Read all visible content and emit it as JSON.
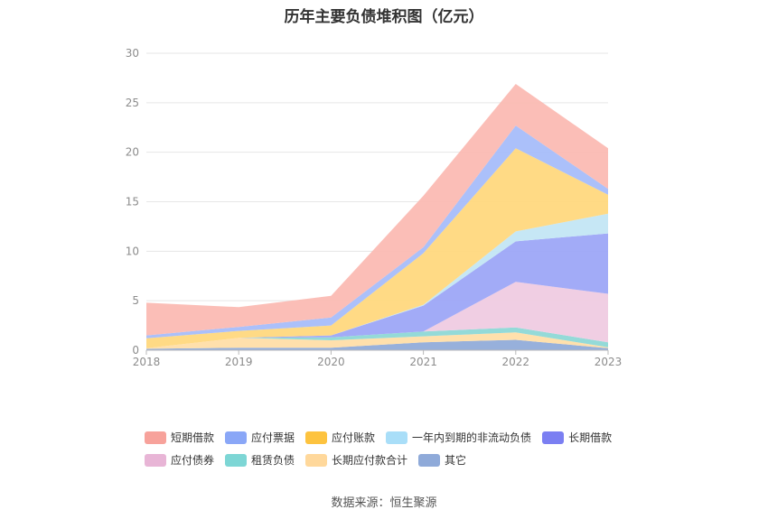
{
  "title": "历年主要负债堆积图（亿元）",
  "source": "数据来源：恒生聚源",
  "chart_data": {
    "type": "area",
    "stacked": true,
    "categories": [
      "2018",
      "2019",
      "2020",
      "2021",
      "2022",
      "2023"
    ],
    "ylim": [
      0,
      30
    ],
    "yticks": [
      0,
      5,
      10,
      15,
      20,
      25,
      30
    ],
    "grid": true,
    "legend_position": "bottom",
    "series": [
      {
        "name": "其它",
        "color": "#91acd9",
        "values": [
          0.15,
          0.25,
          0.25,
          0.8,
          1.05,
          0.2
        ]
      },
      {
        "name": "长期应付款合计",
        "color": "#ffdea8",
        "values": [
          0.05,
          1.0,
          0.75,
          0.6,
          0.75,
          0.1
        ]
      },
      {
        "name": "租赁负债",
        "color": "#8ed8d6",
        "values": [
          0,
          0,
          0.3,
          0.5,
          0.5,
          0.5
        ]
      },
      {
        "name": "应付债券",
        "color": "#efcbe2",
        "values": [
          0,
          0,
          0,
          0,
          4.6,
          4.9
        ]
      },
      {
        "name": "长期借款",
        "color": "#9da6f7",
        "values": [
          0,
          0,
          0.2,
          2.6,
          4.1,
          6.1
        ]
      },
      {
        "name": "一年内到期的非流动负债",
        "color": "#c3e6f4",
        "values": [
          0,
          0,
          0,
          0.1,
          1.0,
          2.0
        ]
      },
      {
        "name": "应付账款",
        "color": "#ffd87e",
        "values": [
          1.0,
          0.7,
          1.0,
          5.2,
          8.4,
          1.9
        ]
      },
      {
        "name": "应付票据",
        "color": "#a6bdfa",
        "values": [
          0.3,
          0.4,
          0.8,
          0.6,
          2.3,
          0.6
        ]
      },
      {
        "name": "短期借款",
        "color": "#fbbab3",
        "values": [
          3.3,
          2.0,
          2.2,
          5.2,
          4.2,
          4.1
        ]
      }
    ]
  },
  "legend": [
    [
      {
        "name": "短期借款",
        "color": "#f7a29b"
      },
      {
        "name": "应付票据",
        "color": "#8aa7f7"
      },
      {
        "name": "应付账款",
        "color": "#fdc33f"
      },
      {
        "name": "一年内到期的非流动负债",
        "color": "#a9def8"
      },
      {
        "name": "长期借款",
        "color": "#7b7ff2"
      }
    ],
    [
      {
        "name": "应付债券",
        "color": "#e8b5d6"
      },
      {
        "name": "租赁负债",
        "color": "#7dd6d5"
      },
      {
        "name": "长期应付款合计",
        "color": "#ffd89b"
      },
      {
        "name": "其它",
        "color": "#8faad9"
      }
    ]
  ]
}
